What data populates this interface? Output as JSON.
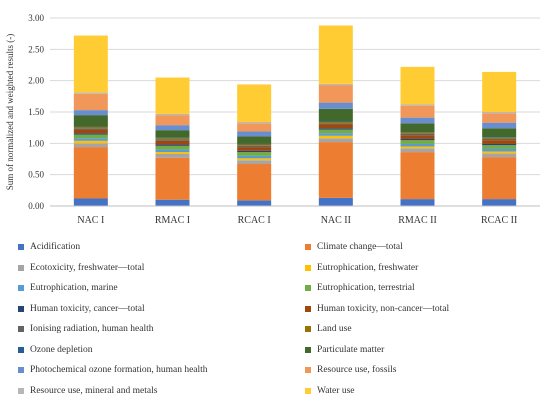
{
  "chart_data": {
    "type": "bar",
    "stacked": true,
    "title": "",
    "xlabel": "",
    "ylabel": "Sum of normalized and weighted results (-)",
    "ylim": [
      0,
      3
    ],
    "yticks": [
      "0.00",
      "0.50",
      "1.00",
      "1.50",
      "2.00",
      "2.50",
      "3.00"
    ],
    "grid": true,
    "legend_position": "bottom",
    "categories": [
      "NAC I",
      "RMAC I",
      "RCAC I",
      "NAC II",
      "RMAC II",
      "RCAC II"
    ],
    "series": [
      {
        "name": "Acidification",
        "color": "#4472C4",
        "values": [
          0.12,
          0.1,
          0.09,
          0.13,
          0.11,
          0.11
        ]
      },
      {
        "name": "Climate change—total",
        "color": "#ED7D31",
        "values": [
          0.82,
          0.67,
          0.58,
          0.89,
          0.75,
          0.67
        ]
      },
      {
        "name": "Ecotoxicity, freshwater—total",
        "color": "#A5A5A5",
        "values": [
          0.06,
          0.06,
          0.06,
          0.06,
          0.06,
          0.06
        ]
      },
      {
        "name": "Eutrophication, freshwater",
        "color": "#FFC000",
        "values": [
          0.04,
          0.03,
          0.03,
          0.04,
          0.03,
          0.03
        ]
      },
      {
        "name": "Eutrophication, marine",
        "color": "#5B9BD5",
        "values": [
          0.04,
          0.04,
          0.04,
          0.04,
          0.04,
          0.04
        ]
      },
      {
        "name": "Eutrophication, terrestrial",
        "color": "#70AD47",
        "values": [
          0.06,
          0.06,
          0.06,
          0.06,
          0.06,
          0.06
        ]
      },
      {
        "name": "Human toxicity, cancer—total",
        "color": "#264478",
        "values": [
          0.02,
          0.02,
          0.02,
          0.02,
          0.02,
          0.02
        ]
      },
      {
        "name": "Human toxicity, non-cancer—total",
        "color": "#9E480E",
        "values": [
          0.06,
          0.06,
          0.06,
          0.06,
          0.06,
          0.06
        ]
      },
      {
        "name": "Ionising radiation, human health",
        "color": "#636363",
        "values": [
          0.02,
          0.02,
          0.02,
          0.02,
          0.02,
          0.02
        ]
      },
      {
        "name": "Land use",
        "color": "#997300",
        "values": [
          0.02,
          0.02,
          0.02,
          0.02,
          0.02,
          0.02
        ]
      },
      {
        "name": "Ozone depletion",
        "color": "#255E91",
        "values": [
          0.01,
          0.01,
          0.01,
          0.01,
          0.01,
          0.01
        ]
      },
      {
        "name": "Particulate matter",
        "color": "#43682B",
        "values": [
          0.18,
          0.12,
          0.12,
          0.2,
          0.14,
          0.14
        ]
      },
      {
        "name": "Photochemical ozone formation, human health",
        "color": "#698ED0",
        "values": [
          0.08,
          0.08,
          0.08,
          0.1,
          0.09,
          0.09
        ]
      },
      {
        "name": "Resource use, fossils",
        "color": "#F1975A",
        "values": [
          0.26,
          0.16,
          0.13,
          0.28,
          0.19,
          0.15
        ]
      },
      {
        "name": "Resource use, mineral and metals",
        "color": "#B7B7B7",
        "values": [
          0.02,
          0.02,
          0.02,
          0.02,
          0.02,
          0.02
        ]
      },
      {
        "name": "Water use",
        "color": "#FFCD33",
        "values": [
          0.91,
          0.58,
          0.6,
          0.93,
          0.6,
          0.64
        ]
      }
    ]
  }
}
